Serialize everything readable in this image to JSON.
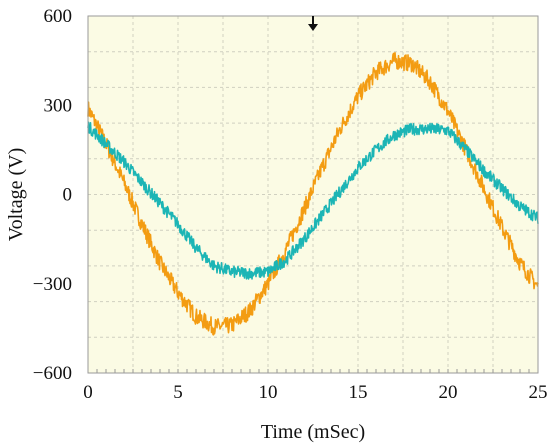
{
  "chart_data": {
    "type": "line",
    "title": "",
    "xlabel": "Time (mSec)",
    "ylabel": "Voltage (V)",
    "xlim": [
      0,
      25
    ],
    "ylim": [
      -600,
      600
    ],
    "x_ticks": [
      "0",
      "5",
      "10",
      "15",
      "20",
      "25"
    ],
    "y_ticks": [
      "600",
      "300",
      "0",
      "−300",
      "−600"
    ],
    "grid": true,
    "plot_background": "#fbfbe4",
    "grid_color": "#d0d0c0",
    "marker": "trigger-arrow at top, x = 12.5",
    "series": [
      {
        "color": "#f39c12",
        "x": [
          0,
          1,
          2,
          3,
          4,
          5,
          6,
          7,
          8,
          9,
          10,
          11,
          12,
          13,
          14,
          15,
          16,
          17,
          18,
          19,
          20,
          21,
          22,
          23,
          24,
          25
        ],
        "values": [
          290,
          170,
          40,
          -100,
          -230,
          -330,
          -410,
          -445,
          -440,
          -390,
          -300,
          -185,
          -50,
          90,
          220,
          330,
          410,
          450,
          440,
          380,
          280,
          150,
          20,
          -110,
          -230,
          -310
        ],
        "noise_amplitude": 28
      },
      {
        "color": "#1cb5b5",
        "x": [
          0,
          1,
          2,
          3,
          4,
          5,
          6,
          7,
          8,
          9,
          10,
          11,
          12,
          13,
          14,
          15,
          16,
          17,
          18,
          19,
          20,
          21,
          22,
          23,
          24,
          25
        ],
        "values": [
          230,
          170,
          110,
          40,
          -30,
          -100,
          -180,
          -240,
          -260,
          -265,
          -260,
          -220,
          -150,
          -70,
          10,
          90,
          150,
          200,
          220,
          220,
          215,
          150,
          80,
          20,
          -40,
          -80
        ],
        "noise_amplitude": 20
      }
    ]
  }
}
